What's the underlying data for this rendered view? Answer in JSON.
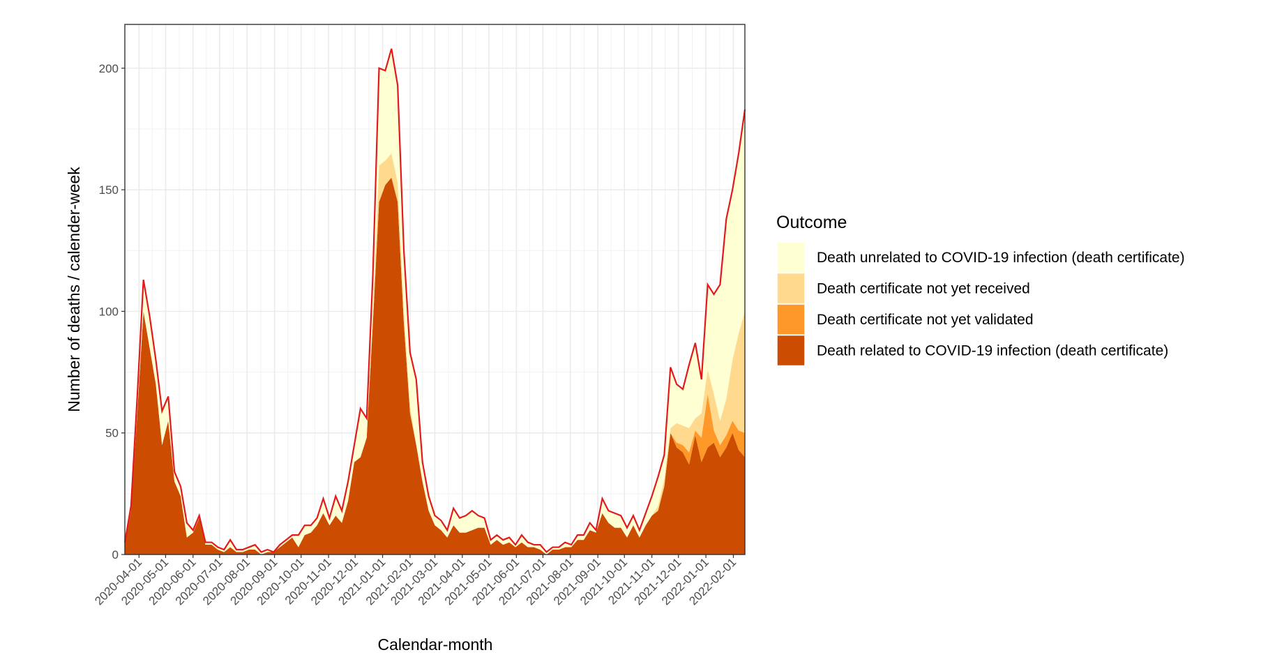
{
  "chart_data": {
    "type": "stacked_area",
    "x_label": "Calendar-month",
    "y_label": "Number of deaths / calender-week",
    "legend_title": "Outcome",
    "legend": "right",
    "grid": true,
    "line_color": "#e31a1c",
    "x": [
      "2020-03-16",
      "2020-03-23",
      "2020-03-30",
      "2020-04-06",
      "2020-04-13",
      "2020-04-20",
      "2020-04-27",
      "2020-05-04",
      "2020-05-11",
      "2020-05-18",
      "2020-05-25",
      "2020-06-01",
      "2020-06-08",
      "2020-06-15",
      "2020-06-22",
      "2020-06-29",
      "2020-07-06",
      "2020-07-13",
      "2020-07-20",
      "2020-07-27",
      "2020-08-03",
      "2020-08-10",
      "2020-08-17",
      "2020-08-24",
      "2020-08-31",
      "2020-09-07",
      "2020-09-14",
      "2020-09-21",
      "2020-09-28",
      "2020-10-05",
      "2020-10-12",
      "2020-10-19",
      "2020-10-26",
      "2020-11-02",
      "2020-11-09",
      "2020-11-16",
      "2020-11-23",
      "2020-11-30",
      "2020-12-07",
      "2020-12-14",
      "2020-12-21",
      "2020-12-28",
      "2021-01-04",
      "2021-01-11",
      "2021-01-18",
      "2021-01-25",
      "2021-02-01",
      "2021-02-08",
      "2021-02-15",
      "2021-02-22",
      "2021-03-01",
      "2021-03-08",
      "2021-03-15",
      "2021-03-22",
      "2021-03-29",
      "2021-04-05",
      "2021-04-12",
      "2021-04-19",
      "2021-04-26",
      "2021-05-03",
      "2021-05-10",
      "2021-05-17",
      "2021-05-24",
      "2021-05-31",
      "2021-06-07",
      "2021-06-14",
      "2021-06-21",
      "2021-06-28",
      "2021-07-05",
      "2021-07-12",
      "2021-07-19",
      "2021-07-26",
      "2021-08-02",
      "2021-08-09",
      "2021-08-16",
      "2021-08-23",
      "2021-08-30",
      "2021-09-06",
      "2021-09-13",
      "2021-09-20",
      "2021-09-27",
      "2021-10-04",
      "2021-10-11",
      "2021-10-18",
      "2021-10-25",
      "2021-11-01",
      "2021-11-08",
      "2021-11-15",
      "2021-11-22",
      "2021-11-29",
      "2021-12-06",
      "2021-12-13",
      "2021-12-20",
      "2021-12-27",
      "2022-01-03",
      "2022-01-10",
      "2022-01-17",
      "2022-01-24",
      "2022-01-31",
      "2022-02-07",
      "2022-02-14"
    ],
    "series": [
      {
        "name": "Death related to COVID-19 infection (death certificate)",
        "color": "#cc4c02",
        "values": [
          4,
          18,
          58,
          100,
          85,
          70,
          45,
          55,
          30,
          24,
          7,
          9,
          15,
          4,
          4,
          2,
          1,
          3,
          1,
          1,
          2,
          2,
          0,
          1,
          1,
          3,
          5,
          7,
          3,
          8,
          9,
          12,
          17,
          12,
          16,
          13,
          22,
          38,
          40,
          48,
          95,
          145,
          152,
          155,
          145,
          95,
          58,
          45,
          30,
          18,
          12,
          10,
          7,
          12,
          9,
          9,
          10,
          11,
          11,
          4,
          6,
          4,
          5,
          3,
          5,
          3,
          3,
          2,
          0,
          2,
          2,
          3,
          3,
          6,
          6,
          10,
          9,
          17,
          13,
          11,
          11,
          7,
          12,
          7,
          12,
          16,
          18,
          28,
          50,
          44,
          42,
          37,
          49,
          38,
          44,
          46,
          40,
          44,
          50,
          43,
          40
        ]
      },
      {
        "name": "Death certificate not yet validated",
        "color": "#fe9929",
        "values": [
          0,
          0,
          0,
          0,
          0,
          0,
          0,
          0,
          0,
          0,
          0,
          0,
          0,
          0,
          0,
          0,
          0,
          0,
          0,
          0,
          0,
          0,
          0,
          0,
          0,
          0,
          0,
          0,
          0,
          0,
          0,
          0,
          0,
          0,
          0,
          0,
          0,
          0,
          0,
          0,
          0,
          0,
          0,
          0,
          0,
          0,
          0,
          0,
          0,
          0,
          0,
          0,
          0,
          0,
          0,
          0,
          0,
          0,
          0,
          0,
          0,
          0,
          0,
          0,
          0,
          0,
          0,
          0,
          0,
          0,
          0,
          0,
          0,
          0,
          0,
          0,
          0,
          0,
          0,
          0,
          0,
          0,
          0,
          0,
          0,
          0,
          0,
          0,
          0,
          2,
          3,
          5,
          2,
          10,
          22,
          5,
          5,
          5,
          5,
          8,
          10
        ]
      },
      {
        "name": "Death certificate not yet received",
        "color": "#fed98e",
        "values": [
          0,
          0,
          0,
          0,
          0,
          0,
          0,
          0,
          0,
          0,
          0,
          0,
          0,
          0,
          0,
          0,
          0,
          0,
          0,
          0,
          0,
          0,
          0,
          0,
          0,
          0,
          0,
          0,
          0,
          0,
          0,
          0,
          0,
          0,
          0,
          0,
          0,
          0,
          0,
          0,
          5,
          15,
          10,
          10,
          8,
          5,
          3,
          0,
          0,
          0,
          0,
          0,
          0,
          0,
          0,
          0,
          0,
          0,
          0,
          0,
          0,
          0,
          0,
          0,
          0,
          0,
          0,
          0,
          0,
          0,
          0,
          0,
          0,
          0,
          0,
          0,
          0,
          0,
          0,
          0,
          0,
          0,
          0,
          0,
          0,
          0,
          2,
          3,
          2,
          8,
          8,
          10,
          5,
          10,
          10,
          15,
          10,
          15,
          25,
          40,
          50
        ]
      },
      {
        "name": "Death unrelated to COVID-19 infection (death certificate)",
        "color": "#ffffd4",
        "values": [
          1,
          2,
          7,
          13,
          13,
          10,
          14,
          10,
          4,
          4,
          6,
          1,
          1,
          1,
          1,
          1,
          1,
          3,
          1,
          1,
          1,
          2,
          1,
          1,
          0,
          1,
          1,
          1,
          5,
          4,
          3,
          3,
          6,
          3,
          8,
          5,
          8,
          7,
          20,
          8,
          15,
          40,
          37,
          43,
          40,
          25,
          22,
          27,
          8,
          6,
          4,
          4,
          3,
          7,
          6,
          7,
          8,
          5,
          4,
          2,
          2,
          2,
          2,
          1,
          3,
          2,
          1,
          2,
          1,
          1,
          1,
          2,
          1,
          2,
          2,
          3,
          1,
          6,
          5,
          6,
          5,
          4,
          4,
          3,
          5,
          8,
          12,
          10,
          25,
          16,
          15,
          26,
          31,
          14,
          35,
          41,
          56,
          74,
          70,
          74,
          83
        ]
      }
    ],
    "xlim": [
      "2020-03-16",
      "2022-02-14"
    ],
    "xticks": [
      "2020-04-01",
      "2020-05-01",
      "2020-06-01",
      "2020-07-01",
      "2020-08-01",
      "2020-09-01",
      "2020-10-01",
      "2020-11-01",
      "2020-12-01",
      "2021-01-01",
      "2021-02-01",
      "2021-03-01",
      "2021-04-01",
      "2021-05-01",
      "2021-06-01",
      "2021-07-01",
      "2021-08-01",
      "2021-09-01",
      "2021-10-01",
      "2021-11-01",
      "2021-12-01",
      "2022-01-01",
      "2022-02-01"
    ],
    "ylim": [
      0,
      218
    ],
    "yticks": [
      0,
      50,
      100,
      150,
      200
    ]
  }
}
